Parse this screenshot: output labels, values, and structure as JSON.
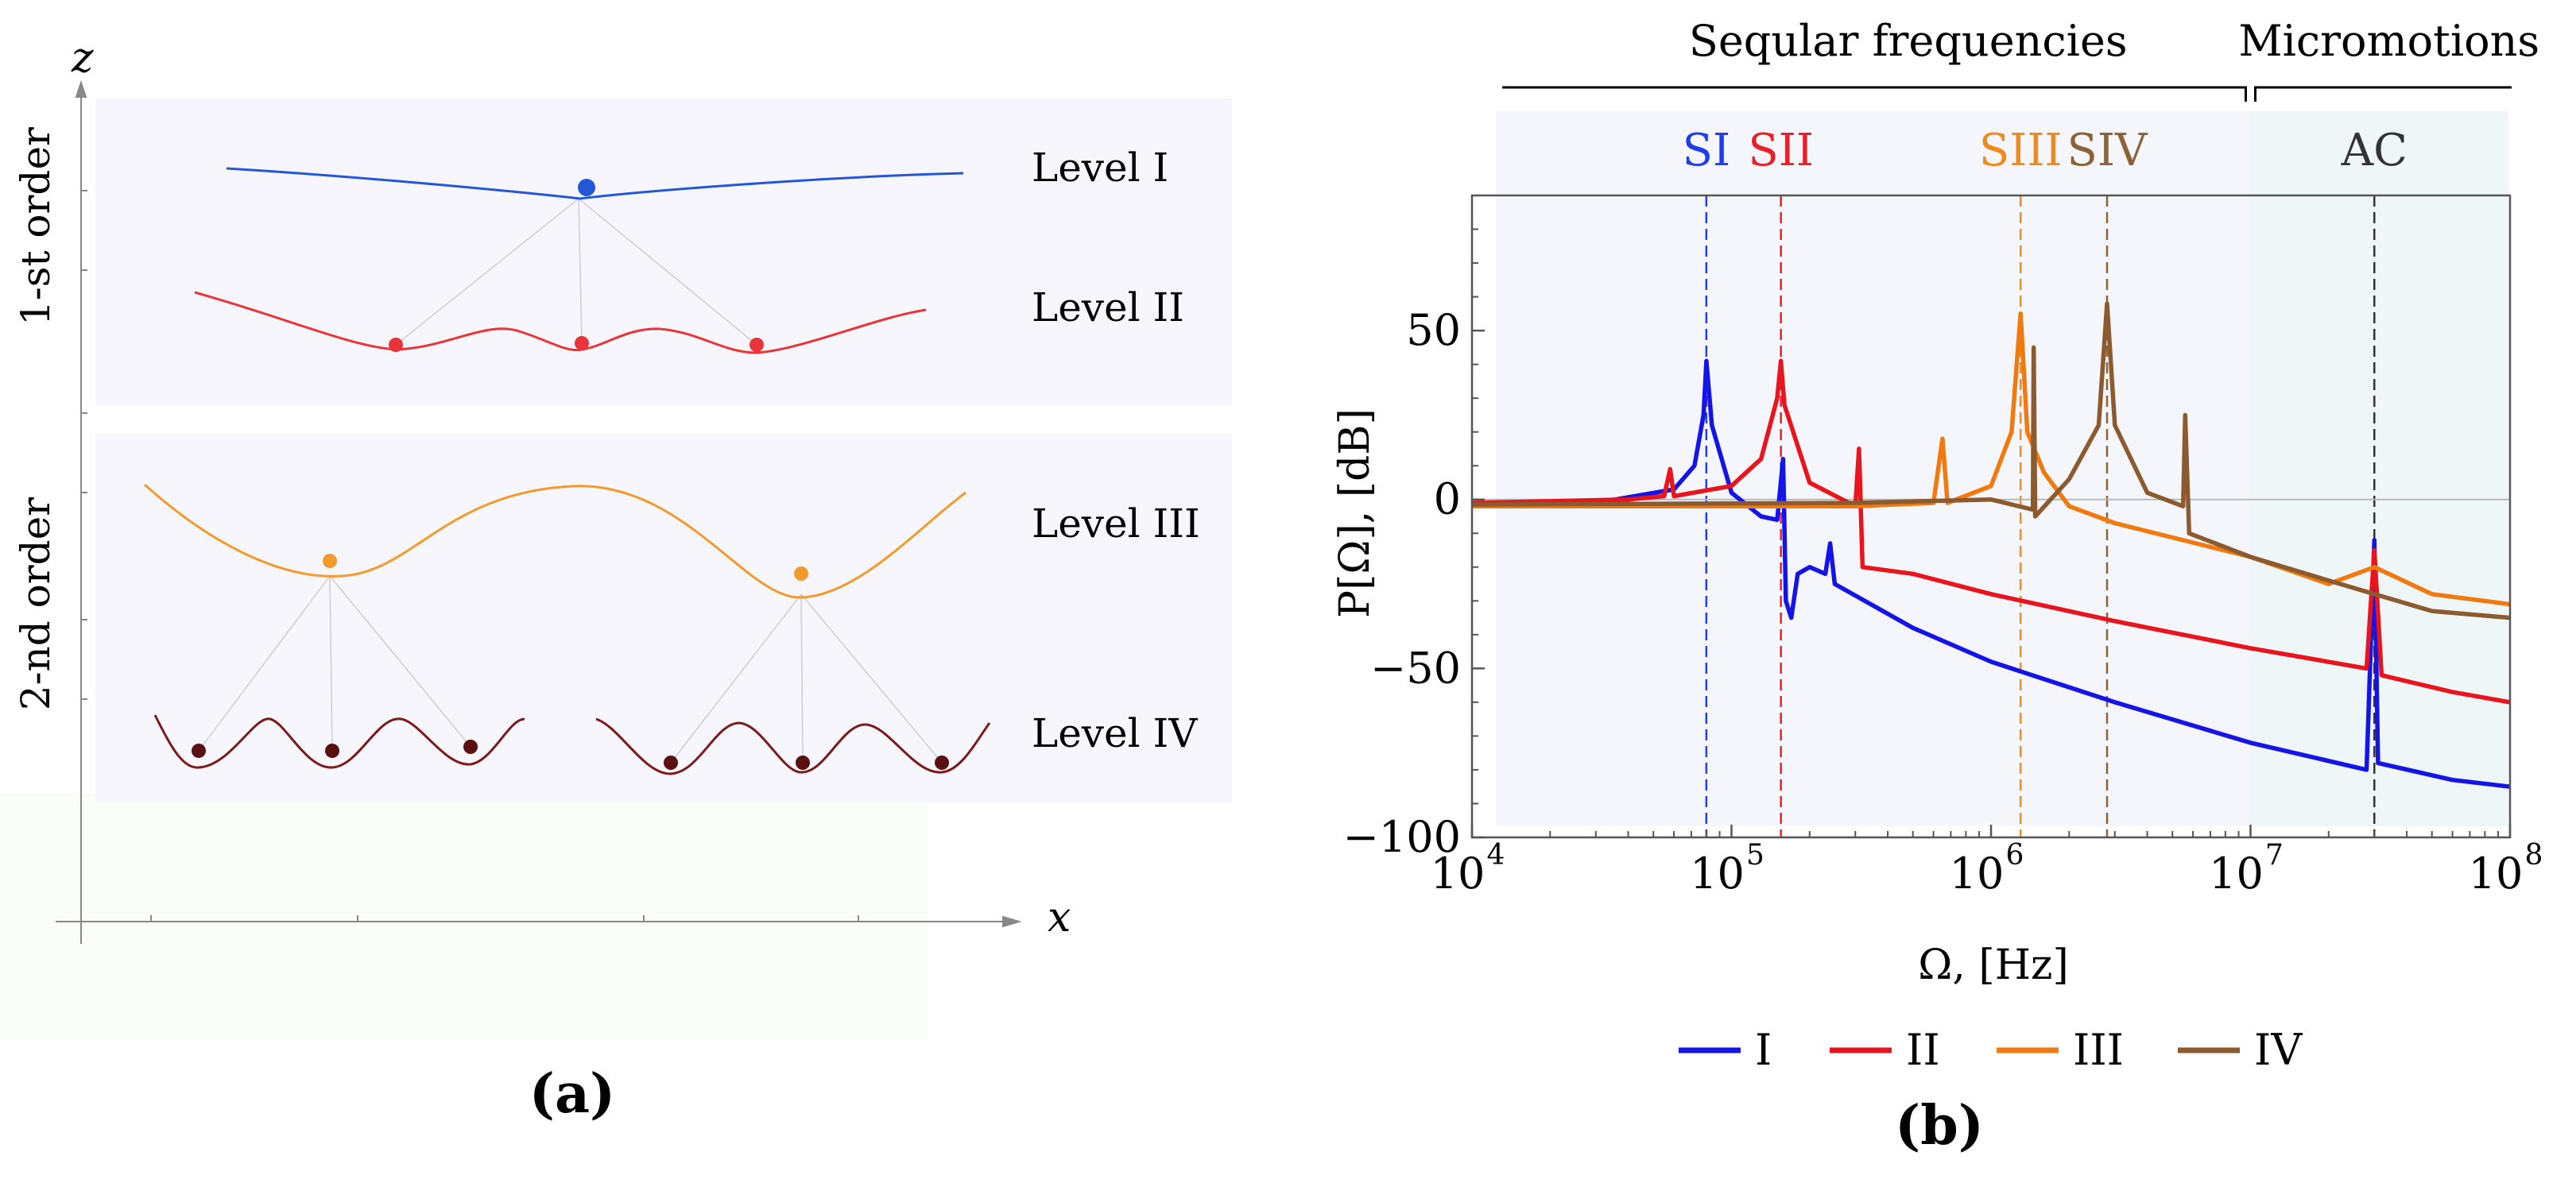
{
  "figure": {
    "panel_a_caption": "(a)",
    "panel_b_caption": "(b)"
  },
  "panel_a": {
    "axis_z": "z",
    "axis_x": "x",
    "order_1_label": "1-st order",
    "order_2_label": "2-nd order",
    "levels": [
      {
        "label": "Level I",
        "color": "#2457d6"
      },
      {
        "label": "Level II",
        "color": "#e8353a"
      },
      {
        "label": "Level III",
        "color": "#f39a2c"
      },
      {
        "label": "Level IV",
        "color": "#7a1a1a"
      }
    ],
    "band_color": "#f6f6fc",
    "bottom_color": "#fafcf8"
  },
  "chart_data": {
    "type": "line",
    "title": "",
    "xlabel": "Ω, [Hz]",
    "ylabel": "P[Ω], [dB]",
    "xscale": "log",
    "xlim": [
      10000,
      100000000
    ],
    "ylim": [
      -100,
      90
    ],
    "x_ticks": [
      {
        "base": "10",
        "exp": "4",
        "value": 10000
      },
      {
        "base": "10",
        "exp": "5",
        "value": 100000
      },
      {
        "base": "10",
        "exp": "6",
        "value": 1000000
      },
      {
        "base": "10",
        "exp": "7",
        "value": 10000000
      },
      {
        "base": "10",
        "exp": "8",
        "value": 100000000
      }
    ],
    "y_ticks": [
      {
        "label": "50",
        "value": 50
      },
      {
        "label": "0",
        "value": 0
      },
      {
        "label": "−50",
        "value": -50
      },
      {
        "label": "−100",
        "value": -100
      }
    ],
    "regions": {
      "secular_label": "Seqular frequencies",
      "micromotion_label": "Micromotions",
      "boundary_hz": 10000000
    },
    "markers": [
      {
        "label": "SI",
        "x": 80000,
        "color": "#1f3ee8"
      },
      {
        "label": "SII",
        "x": 155000,
        "color": "#e8202a"
      },
      {
        "label": "SIII",
        "x": 1300000,
        "color": "#f08a1a"
      },
      {
        "label": "SIV",
        "x": 2800000,
        "color": "#8c6239"
      },
      {
        "label": "AC",
        "x": 30000000,
        "color": "#333333"
      }
    ],
    "series": [
      {
        "name": "I",
        "color": "#1414e6",
        "points": [
          [
            10000,
            -1.5
          ],
          [
            30000,
            -1
          ],
          [
            60000,
            3
          ],
          [
            72000,
            10
          ],
          [
            78000,
            25
          ],
          [
            80000,
            41
          ],
          [
            84000,
            22
          ],
          [
            100000,
            2
          ],
          [
            130000,
            -5
          ],
          [
            150000,
            -6
          ],
          [
            158000,
            12
          ],
          [
            162000,
            -30
          ],
          [
            170000,
            -35
          ],
          [
            180000,
            -22
          ],
          [
            200000,
            -20
          ],
          [
            230000,
            -22
          ],
          [
            240000,
            -13
          ],
          [
            250000,
            -25
          ],
          [
            500000,
            -38
          ],
          [
            1000000,
            -48
          ],
          [
            3000000,
            -60
          ],
          [
            10000000,
            -72
          ],
          [
            28000000,
            -80
          ],
          [
            30000000,
            -12
          ],
          [
            31000000,
            -78
          ],
          [
            60000000,
            -83
          ],
          [
            100000000,
            -85
          ]
        ]
      },
      {
        "name": "II",
        "color": "#e8141e",
        "points": [
          [
            10000,
            -1
          ],
          [
            40000,
            0
          ],
          [
            55000,
            1
          ],
          [
            58000,
            9
          ],
          [
            60000,
            1
          ],
          [
            100000,
            4
          ],
          [
            130000,
            12
          ],
          [
            150000,
            30
          ],
          [
            155000,
            41
          ],
          [
            160000,
            28
          ],
          [
            200000,
            5
          ],
          [
            300000,
            -2
          ],
          [
            310000,
            15
          ],
          [
            320000,
            -20
          ],
          [
            500000,
            -22
          ],
          [
            1000000,
            -28
          ],
          [
            3000000,
            -36
          ],
          [
            10000000,
            -44
          ],
          [
            28000000,
            -50
          ],
          [
            30000000,
            -15
          ],
          [
            32000000,
            -52
          ],
          [
            60000000,
            -57
          ],
          [
            100000000,
            -60
          ]
        ]
      },
      {
        "name": "III",
        "color": "#f07a10",
        "points": [
          [
            10000,
            -2
          ],
          [
            100000,
            -2
          ],
          [
            300000,
            -2
          ],
          [
            600000,
            -1
          ],
          [
            650000,
            18
          ],
          [
            680000,
            -1
          ],
          [
            1000000,
            4
          ],
          [
            1200000,
            20
          ],
          [
            1300000,
            55
          ],
          [
            1380000,
            20
          ],
          [
            1600000,
            8
          ],
          [
            2000000,
            -2
          ],
          [
            3000000,
            -7
          ],
          [
            10000000,
            -17
          ],
          [
            20000000,
            -25
          ],
          [
            30000000,
            -20
          ],
          [
            50000000,
            -28
          ],
          [
            100000000,
            -31
          ]
        ]
      },
      {
        "name": "IV",
        "color": "#8c5a2f",
        "points": [
          [
            10000,
            -1.5
          ],
          [
            300000,
            -1
          ],
          [
            1000000,
            0
          ],
          [
            1450000,
            -3
          ],
          [
            1460000,
            45
          ],
          [
            1480000,
            -5
          ],
          [
            2000000,
            6
          ],
          [
            2600000,
            22
          ],
          [
            2800000,
            58
          ],
          [
            3000000,
            22
          ],
          [
            4000000,
            2
          ],
          [
            5500000,
            -2
          ],
          [
            5600000,
            25
          ],
          [
            5800000,
            -10
          ],
          [
            10000000,
            -17
          ],
          [
            20000000,
            -24
          ],
          [
            30000000,
            -28
          ],
          [
            50000000,
            -33
          ],
          [
            100000000,
            -35
          ]
        ]
      }
    ],
    "legend": [
      {
        "label": "I",
        "color": "#1414e6"
      },
      {
        "label": "II",
        "color": "#e8141e"
      },
      {
        "label": "III",
        "color": "#f07a10"
      },
      {
        "label": "IV",
        "color": "#8c5a2f"
      }
    ]
  }
}
